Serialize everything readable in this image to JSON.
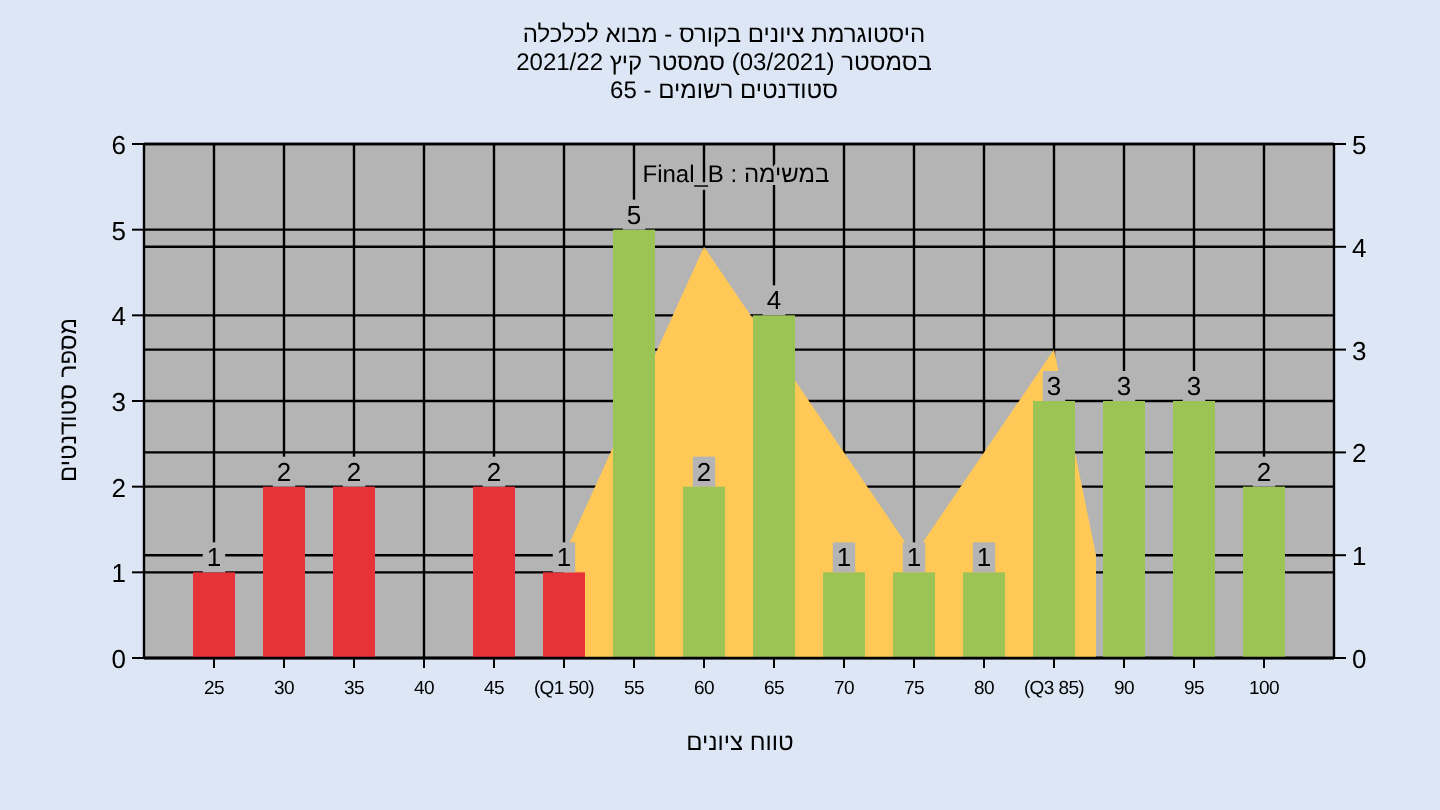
{
  "chart_data": {
    "type": "bar",
    "title": "היסטוגרמת ציונים בקורס - מבוא לכלכלה",
    "subtitle": "בסמסטר  (03/2021)  סמסטר קיץ 2021/22",
    "annotations": [
      "סטודנטים רשומים - 65",
      "במשימה : Final_B"
    ],
    "xlabel": "טווח ציונים",
    "ylabel": "מספר סטודנטים",
    "xlim": [
      20,
      105
    ],
    "ylim": [
      0,
      6
    ],
    "y2lim": [
      0,
      5
    ],
    "xticks": [
      25,
      30,
      35,
      40,
      45,
      {
        "value": 50,
        "label": "(Q1 50)"
      },
      55,
      60,
      65,
      70,
      75,
      80,
      {
        "value": 85,
        "label": "(Q3 85)"
      },
      90,
      95,
      100
    ],
    "yticks": [
      0,
      1,
      2,
      3,
      4,
      5,
      6
    ],
    "y2ticks": [
      0,
      1,
      2,
      3,
      4,
      5
    ],
    "grid": true,
    "series": [
      {
        "x": [
          25,
          30,
          35,
          40,
          45,
          50,
          55,
          60,
          65,
          70,
          75,
          80,
          85,
          90,
          95,
          100
        ],
        "values": [
          1,
          2,
          2,
          0,
          2,
          1,
          5,
          2,
          4,
          1,
          1,
          1,
          3,
          3,
          3,
          2
        ],
        "value_labels": [
          "1",
          "2",
          "2",
          null,
          "2",
          "1",
          "5",
          "2",
          "4",
          "1",
          "1",
          "1",
          "3",
          "3",
          "3",
          "2"
        ],
        "colors": [
          "#e8323a",
          "#e8323a",
          "#e8323a",
          "#e8323a",
          "#e8323a",
          "#e8323a",
          "#9cc454",
          "#9cc454",
          "#9cc454",
          "#9cc454",
          "#9cc454",
          "#9cc454",
          "#9cc454",
          "#9cc454",
          "#9cc454",
          "#9cc454"
        ]
      },
      {
        "type": "area",
        "axis": "y2",
        "x": [
          50,
          60,
          70,
          75,
          85,
          88
        ],
        "values": [
          1,
          4,
          2,
          1,
          3,
          1
        ],
        "color": "#ffc857"
      }
    ]
  }
}
